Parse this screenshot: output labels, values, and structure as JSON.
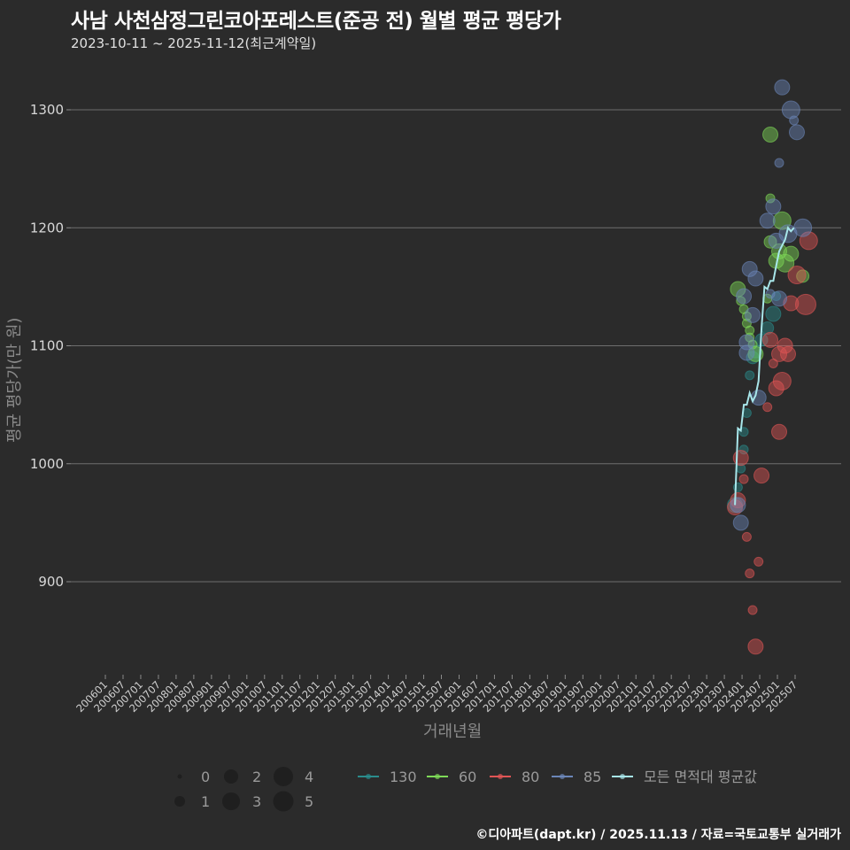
{
  "header": {
    "title": "사남 사천삼정그린코아포레스트(준공 전) 월별 평균 평당가",
    "subtitle": "2023-10-11 ~ 2025-11-12(최근계약일)"
  },
  "footer": {
    "caption": "©디아파트(dapt.kr) / 2025.11.13 / 자료=국토교통부 실거래가"
  },
  "chart_data": {
    "type": "scatter",
    "title": "사남 사천삼정그린코아포레스트(준공 전) 월별 평균 평당가",
    "subtitle": "2023-10-11 ~ 2025-11-12(최근계약일)",
    "xlabel": "거래년월",
    "ylabel": "평균 평당가(만 원)",
    "ylim": [
      825,
      1330
    ],
    "yticks": [
      900,
      1000,
      1100,
      1200,
      1300
    ],
    "xticks": [
      "200601",
      "200607",
      "200701",
      "200707",
      "200801",
      "200807",
      "200901",
      "200907",
      "201001",
      "201007",
      "201101",
      "201107",
      "201201",
      "201207",
      "201301",
      "201307",
      "201401",
      "201407",
      "201501",
      "201507",
      "201601",
      "201607",
      "201701",
      "201707",
      "201801",
      "201807",
      "201901",
      "201907",
      "202001",
      "202007",
      "202101",
      "202107",
      "202201",
      "202207",
      "202301",
      "202307",
      "202401",
      "202407",
      "202501",
      "202507"
    ],
    "grid": true,
    "background": "#2b2b2b",
    "size_legend": {
      "title": "",
      "values": [
        0,
        1,
        2,
        3,
        4,
        5
      ]
    },
    "color_legend": [
      {
        "name": "130",
        "color": "#2a8c8c"
      },
      {
        "name": "60",
        "color": "#7ed957"
      },
      {
        "name": "80",
        "color": "#e05555"
      },
      {
        "name": "85",
        "color": "#6b86b8"
      },
      {
        "name": "모든 면적대 평균값",
        "color": "#a8e6ea"
      }
    ],
    "series": [
      {
        "name": "130",
        "color": "#2a8c8c",
        "points": [
          {
            "x": "202310",
            "y": 965,
            "size": 3
          },
          {
            "x": "202311",
            "y": 980,
            "size": 1
          },
          {
            "x": "202312",
            "y": 996,
            "size": 1
          },
          {
            "x": "202401",
            "y": 1012,
            "size": 1
          },
          {
            "x": "202401",
            "y": 1027,
            "size": 1
          },
          {
            "x": "202402",
            "y": 1043,
            "size": 1
          },
          {
            "x": "202403",
            "y": 1075,
            "size": 1
          },
          {
            "x": "202404",
            "y": 1090,
            "size": 2
          },
          {
            "x": "202405",
            "y": 1095,
            "size": 2
          },
          {
            "x": "202407",
            "y": 1105,
            "size": 2
          },
          {
            "x": "202409",
            "y": 1115,
            "size": 2
          },
          {
            "x": "202411",
            "y": 1127,
            "size": 3
          },
          {
            "x": "202412",
            "y": 1142,
            "size": 1
          }
        ]
      },
      {
        "name": "60",
        "color": "#7ed957",
        "points": [
          {
            "x": "202311",
            "y": 1148,
            "size": 3
          },
          {
            "x": "202312",
            "y": 1138,
            "size": 1
          },
          {
            "x": "202401",
            "y": 1131,
            "size": 1
          },
          {
            "x": "202402",
            "y": 1125,
            "size": 1
          },
          {
            "x": "202402",
            "y": 1119,
            "size": 1
          },
          {
            "x": "202403",
            "y": 1113,
            "size": 1
          },
          {
            "x": "202403",
            "y": 1107,
            "size": 1
          },
          {
            "x": "202404",
            "y": 1101,
            "size": 1
          },
          {
            "x": "202405",
            "y": 1093,
            "size": 3
          },
          {
            "x": "202409",
            "y": 1140,
            "size": 1
          },
          {
            "x": "202410",
            "y": 1188,
            "size": 2
          },
          {
            "x": "202410",
            "y": 1225,
            "size": 1
          },
          {
            "x": "202410",
            "y": 1279,
            "size": 3
          },
          {
            "x": "202412",
            "y": 1172,
            "size": 3
          },
          {
            "x": "202501",
            "y": 1180,
            "size": 3
          },
          {
            "x": "202502",
            "y": 1206,
            "size": 4
          },
          {
            "x": "202503",
            "y": 1170,
            "size": 4
          },
          {
            "x": "202505",
            "y": 1178,
            "size": 3
          },
          {
            "x": "202509",
            "y": 1159,
            "size": 2
          }
        ]
      },
      {
        "name": "80",
        "color": "#e05555",
        "points": [
          {
            "x": "202310",
            "y": 963,
            "size": 3
          },
          {
            "x": "202311",
            "y": 969,
            "size": 3
          },
          {
            "x": "202312",
            "y": 1005,
            "size": 3
          },
          {
            "x": "202401",
            "y": 987,
            "size": 1
          },
          {
            "x": "202402",
            "y": 938,
            "size": 1
          },
          {
            "x": "202403",
            "y": 907,
            "size": 1
          },
          {
            "x": "202404",
            "y": 876,
            "size": 1
          },
          {
            "x": "202405",
            "y": 845,
            "size": 3
          },
          {
            "x": "202406",
            "y": 917,
            "size": 1
          },
          {
            "x": "202407",
            "y": 990,
            "size": 3
          },
          {
            "x": "202409",
            "y": 1048,
            "size": 1
          },
          {
            "x": "202410",
            "y": 1105,
            "size": 3
          },
          {
            "x": "202411",
            "y": 1085,
            "size": 1
          },
          {
            "x": "202412",
            "y": 1064,
            "size": 3
          },
          {
            "x": "202501",
            "y": 1027,
            "size": 3
          },
          {
            "x": "202501",
            "y": 1093,
            "size": 3
          },
          {
            "x": "202502",
            "y": 1070,
            "size": 4
          },
          {
            "x": "202503",
            "y": 1100,
            "size": 3
          },
          {
            "x": "202504",
            "y": 1093,
            "size": 3
          },
          {
            "x": "202505",
            "y": 1136,
            "size": 3
          },
          {
            "x": "202507",
            "y": 1160,
            "size": 4
          },
          {
            "x": "202510",
            "y": 1135,
            "size": 5
          },
          {
            "x": "202511",
            "y": 1189,
            "size": 4
          }
        ]
      },
      {
        "name": "85",
        "color": "#6b86b8",
        "points": [
          {
            "x": "202311",
            "y": 965,
            "size": 3
          },
          {
            "x": "202312",
            "y": 950,
            "size": 3
          },
          {
            "x": "202401",
            "y": 1142,
            "size": 3
          },
          {
            "x": "202402",
            "y": 1094,
            "size": 3
          },
          {
            "x": "202402",
            "y": 1103,
            "size": 3
          },
          {
            "x": "202403",
            "y": 1165,
            "size": 3
          },
          {
            "x": "202404",
            "y": 1126,
            "size": 3
          },
          {
            "x": "202405",
            "y": 1157,
            "size": 3
          },
          {
            "x": "202406",
            "y": 1056,
            "size": 3
          },
          {
            "x": "202409",
            "y": 1206,
            "size": 3
          },
          {
            "x": "202410",
            "y": 1144,
            "size": 1
          },
          {
            "x": "202411",
            "y": 1218,
            "size": 3
          },
          {
            "x": "202412",
            "y": 1189,
            "size": 3
          },
          {
            "x": "202501",
            "y": 1140,
            "size": 3
          },
          {
            "x": "202501",
            "y": 1255,
            "size": 1
          },
          {
            "x": "202502",
            "y": 1319,
            "size": 3
          },
          {
            "x": "202504",
            "y": 1195,
            "size": 4
          },
          {
            "x": "202505",
            "y": 1300,
            "size": 4
          },
          {
            "x": "202506",
            "y": 1291,
            "size": 1
          },
          {
            "x": "202507",
            "y": 1281,
            "size": 3
          },
          {
            "x": "202509",
            "y": 1200,
            "size": 4
          }
        ]
      }
    ],
    "average_line": {
      "name": "모든 면적대 평균값",
      "color": "#a8e6ea",
      "points": [
        {
          "x": "202310",
          "y": 965
        },
        {
          "x": "202311",
          "y": 1030
        },
        {
          "x": "202312",
          "y": 1028
        },
        {
          "x": "202401",
          "y": 1050
        },
        {
          "x": "202402",
          "y": 1050
        },
        {
          "x": "202403",
          "y": 1060
        },
        {
          "x": "202404",
          "y": 1053
        },
        {
          "x": "202405",
          "y": 1058
        },
        {
          "x": "202406",
          "y": 1070
        },
        {
          "x": "202407",
          "y": 1115
        },
        {
          "x": "202408",
          "y": 1150
        },
        {
          "x": "202409",
          "y": 1148
        },
        {
          "x": "202410",
          "y": 1155
        },
        {
          "x": "202411",
          "y": 1155
        },
        {
          "x": "202412",
          "y": 1168
        },
        {
          "x": "202501",
          "y": 1180
        },
        {
          "x": "202502",
          "y": 1185
        },
        {
          "x": "202503",
          "y": 1190
        },
        {
          "x": "202504",
          "y": 1200
        },
        {
          "x": "202505",
          "y": 1197
        },
        {
          "x": "202506",
          "y": 1200
        }
      ]
    }
  }
}
